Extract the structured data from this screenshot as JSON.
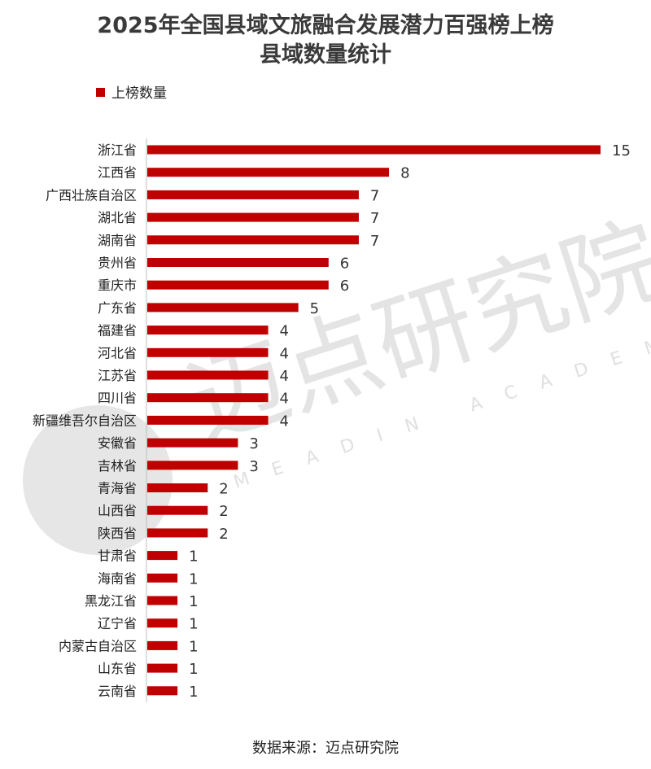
{
  "title_line1": "2025年全国县域文旅融合发展潜力百强榜上榜",
  "title_line2": "县域数量统计",
  "source": "数据来源：迈点研究院",
  "watermark": {
    "cn": "迈点研究院",
    "en": "MEADIN ACADEMY"
  },
  "colors": {
    "bar": "#C00000",
    "axis": "#BFBFBF"
  },
  "chart_data": {
    "type": "bar",
    "orientation": "horizontal",
    "legend": {
      "label": "上榜数量",
      "position": "top-left"
    },
    "categories": [
      "浙江省",
      "江西省",
      "广西壮族自治区",
      "湖北省",
      "湖南省",
      "贵州省",
      "重庆市",
      "广东省",
      "福建省",
      "河北省",
      "江苏省",
      "四川省",
      "新疆维吾尔自治区",
      "安徽省",
      "吉林省",
      "青海省",
      "山西省",
      "陕西省",
      "甘肃省",
      "海南省",
      "黑龙江省",
      "辽宁省",
      "内蒙古自治区",
      "山东省",
      "云南省"
    ],
    "series": [
      {
        "name": "上榜数量",
        "values": [
          15,
          8,
          7,
          7,
          7,
          6,
          6,
          5,
          4,
          4,
          4,
          4,
          4,
          3,
          3,
          2,
          2,
          2,
          1,
          1,
          1,
          1,
          1,
          1,
          1
        ]
      }
    ],
    "xlim": [
      0,
      15
    ],
    "grid": false,
    "data_labels": true
  }
}
